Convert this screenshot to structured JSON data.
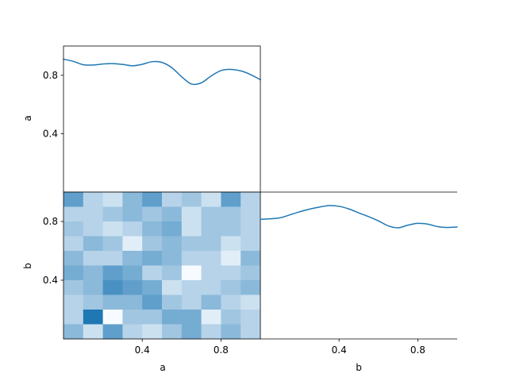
{
  "chart_data": {
    "type": "pairplot",
    "variables": [
      "a",
      "b"
    ],
    "line_color": "#1f77b4",
    "cmap_low": "#f7fbff",
    "cmap_high": "#1f77b4",
    "panels": [
      {
        "id": "diag-a",
        "type": "line",
        "xlim": [
          0,
          1
        ],
        "ylim": [
          0,
          1
        ],
        "ylabel": "a",
        "yticks": [
          0.4,
          0.8
        ],
        "x": [
          0,
          0.05,
          0.1,
          0.15,
          0.2,
          0.25,
          0.3,
          0.35,
          0.4,
          0.45,
          0.5,
          0.55,
          0.6,
          0.65,
          0.7,
          0.75,
          0.8,
          0.85,
          0.9,
          0.95,
          1.0
        ],
        "y": [
          0.91,
          0.895,
          0.872,
          0.87,
          0.877,
          0.88,
          0.874,
          0.865,
          0.875,
          0.893,
          0.888,
          0.852,
          0.79,
          0.74,
          0.748,
          0.795,
          0.832,
          0.84,
          0.83,
          0.805,
          0.77
        ]
      },
      {
        "id": "diag-b",
        "type": "line",
        "xlim": [
          0,
          1
        ],
        "ylim": [
          0,
          1
        ],
        "xlabel": "b",
        "xticks": [
          0.4,
          0.8
        ],
        "x": [
          0,
          0.05,
          0.1,
          0.15,
          0.2,
          0.25,
          0.3,
          0.35,
          0.4,
          0.45,
          0.5,
          0.55,
          0.6,
          0.65,
          0.7,
          0.75,
          0.8,
          0.85,
          0.9,
          0.95,
          1.0
        ],
        "y": [
          0.815,
          0.818,
          0.825,
          0.845,
          0.866,
          0.884,
          0.898,
          0.908,
          0.903,
          0.885,
          0.858,
          0.833,
          0.804,
          0.77,
          0.757,
          0.775,
          0.787,
          0.782,
          0.765,
          0.759,
          0.762
        ]
      },
      {
        "id": "hist-b-vs-a",
        "type": "heatmap",
        "xlim": [
          0,
          1
        ],
        "ylim": [
          0,
          1
        ],
        "xlabel": "a",
        "ylabel": "b",
        "xticks": [
          0.4,
          0.8
        ],
        "yticks": [
          0.4,
          0.8
        ],
        "bins": 10,
        "counts": [
          [
            7,
            3,
            2,
            5,
            7,
            3,
            4,
            2,
            7,
            3
          ],
          [
            3,
            3,
            4,
            5,
            4,
            5,
            2,
            4,
            4,
            3
          ],
          [
            4,
            3,
            2,
            3,
            5,
            6,
            2,
            4,
            4,
            3
          ],
          [
            3,
            5,
            4,
            1,
            4,
            5,
            4,
            4,
            2,
            3
          ],
          [
            5,
            3,
            3,
            5,
            6,
            5,
            3,
            3,
            1,
            5
          ],
          [
            6,
            5,
            7,
            6,
            3,
            4,
            0,
            3,
            3,
            4
          ],
          [
            4,
            5,
            8,
            7,
            6,
            2,
            3,
            3,
            4,
            5
          ],
          [
            3,
            4,
            5,
            5,
            7,
            4,
            3,
            5,
            3,
            2
          ],
          [
            3,
            10,
            0,
            4,
            4,
            6,
            6,
            1,
            4,
            3
          ],
          [
            5,
            2,
            7,
            3,
            2,
            4,
            6,
            3,
            5,
            3
          ]
        ]
      }
    ]
  }
}
